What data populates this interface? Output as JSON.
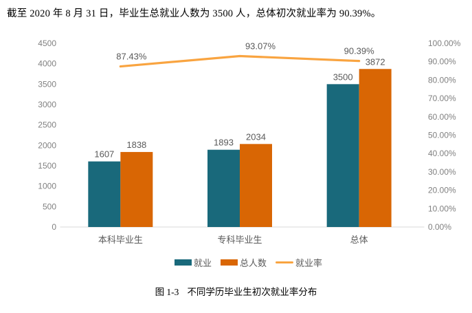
{
  "header": {
    "text": "截至 2020 年 8 月 31 日，毕业生总就业人数为 3500 人，总体初次就业率为 90.39%。"
  },
  "caption": {
    "label": "图 1-3",
    "text": "不同学历毕业生初次就业率分布"
  },
  "colors": {
    "employed_bar": "#19697B",
    "total_bar": "#D96604",
    "rate_line": "#F9A440",
    "axis_line": "#D9D9D9",
    "tick_text": "#808080",
    "label_text": "#595959"
  },
  "chart_data": {
    "type": "bar",
    "subtype": "grouped bars with secondary-axis line (combo)",
    "categories": [
      "本科毕业生",
      "专科毕业生",
      "总体"
    ],
    "series": [
      {
        "name": "就业",
        "type": "bar",
        "axis": "left",
        "color": "#19697B",
        "values": [
          1607,
          1893,
          3500
        ],
        "labels": [
          "1607",
          "1893",
          "3500"
        ]
      },
      {
        "name": "总人数",
        "type": "bar",
        "axis": "left",
        "color": "#D96604",
        "values": [
          1838,
          2034,
          3872
        ],
        "labels": [
          "1838",
          "2034",
          "3872"
        ]
      },
      {
        "name": "就业率",
        "type": "line",
        "axis": "right",
        "color": "#F9A440",
        "values": [
          87.43,
          93.07,
          90.39
        ],
        "labels": [
          "87.43%",
          "93.07%",
          "90.39%"
        ]
      }
    ],
    "left_axis": {
      "min": 0,
      "max": 4500,
      "step": 500,
      "tick_labels": [
        "0",
        "500",
        "1000",
        "1500",
        "2000",
        "2500",
        "3000",
        "3500",
        "4000",
        "4500"
      ]
    },
    "right_axis": {
      "min": 0,
      "max": 100,
      "step": 10,
      "format": "percent",
      "tick_labels": [
        "0.00%",
        "10.00%",
        "20.00%",
        "30.00%",
        "40.00%",
        "50.00%",
        "60.00%",
        "70.00%",
        "80.00%",
        "90.00%",
        "100.00%"
      ]
    },
    "title": "",
    "xlabel": "",
    "ylabel": "",
    "grid": false,
    "legend_position": "bottom"
  }
}
